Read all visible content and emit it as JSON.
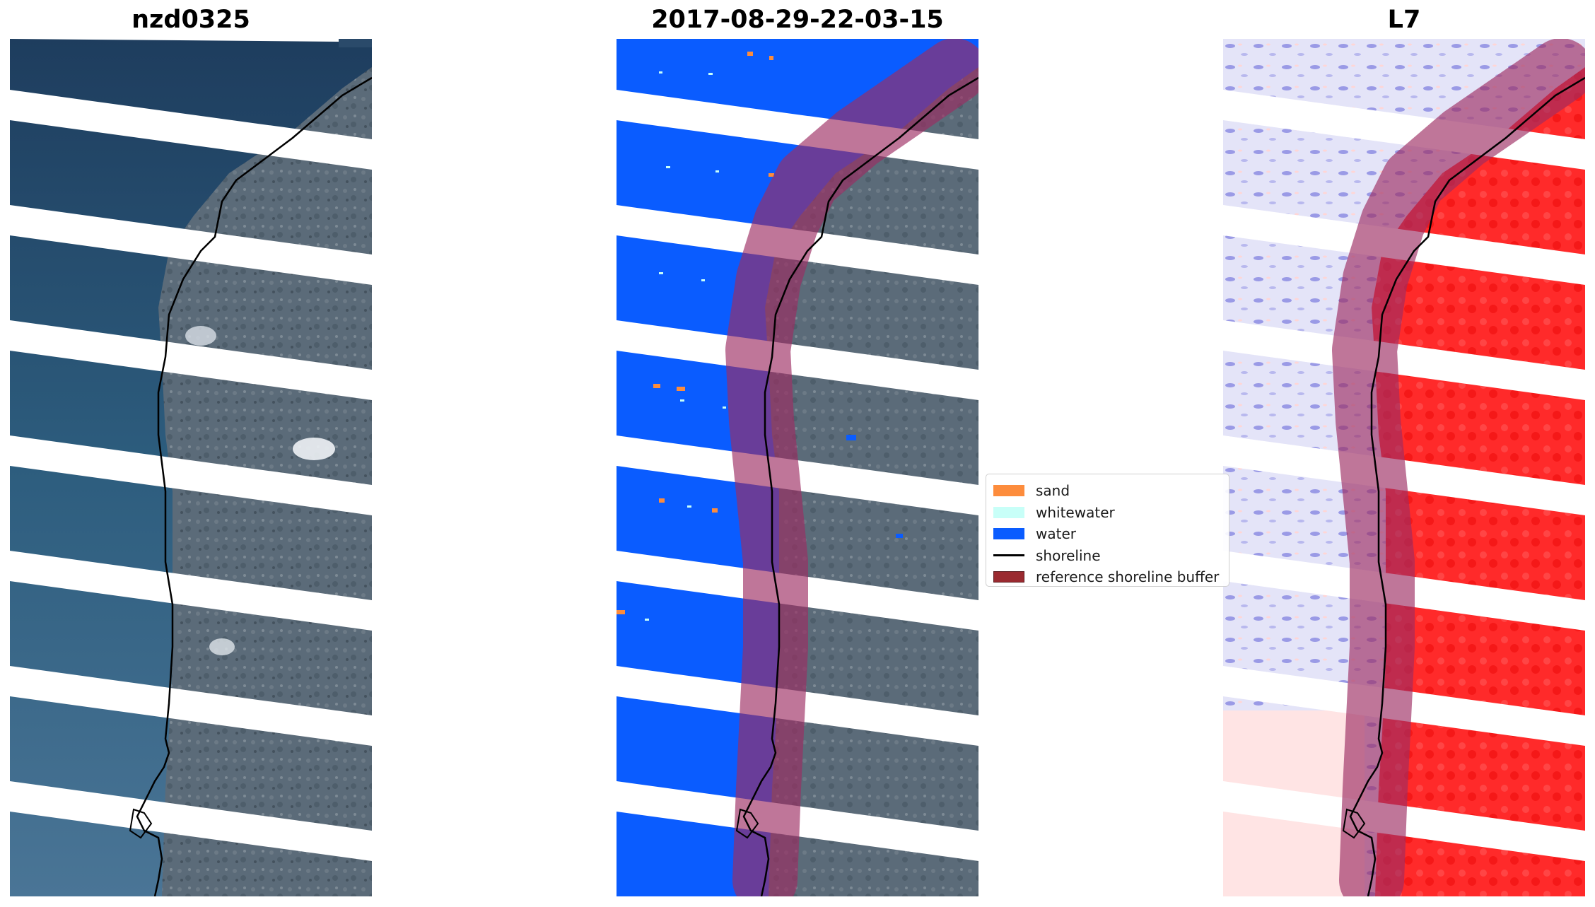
{
  "panels": [
    {
      "title": "nzd0325",
      "kind": "rgb-image"
    },
    {
      "title": "2017-08-29-22-03-15",
      "kind": "classified-image"
    },
    {
      "title": "L7",
      "kind": "index-image"
    }
  ],
  "legend": {
    "items": [
      {
        "label": "sand",
        "color": "#fd8c3c",
        "symbol": "patch"
      },
      {
        "label": "whitewater",
        "color": "#c8fff8",
        "symbol": "patch"
      },
      {
        "label": "water",
        "color": "#0a5cff",
        "symbol": "patch"
      },
      {
        "label": "shoreline",
        "color": "#000000",
        "symbol": "line"
      },
      {
        "label": "reference shoreline buffer",
        "color": "#9a2a30",
        "symbol": "patch"
      }
    ]
  },
  "colors": {
    "ocean_rgb": "#2f5a7a",
    "land_rgb": "#5a6a78",
    "water_class": "#0a5cff",
    "buffer_overlay": "#9c2d62",
    "index_negative": "#c8c8f4",
    "index_positive": "#ff2a2a"
  }
}
